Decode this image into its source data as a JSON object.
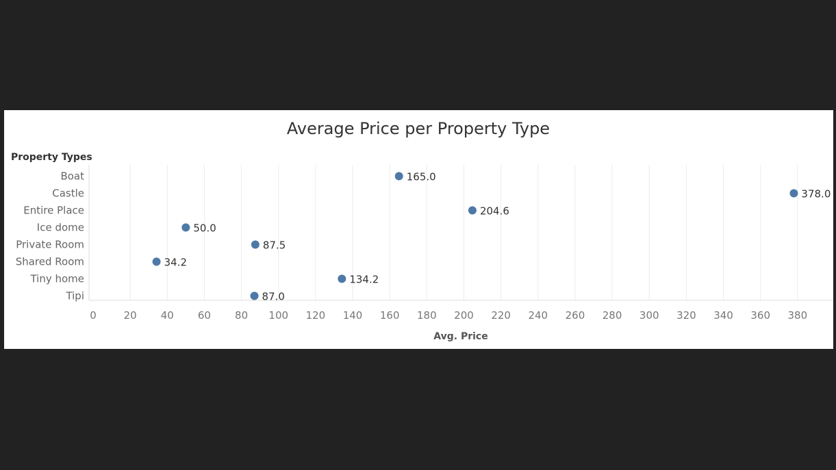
{
  "chart_data": {
    "type": "scatter",
    "title": "Average Price per Property Type",
    "row_header": "Property Types",
    "xlabel": "Avg. Price",
    "ylabel": "",
    "xlim": [
      0,
      395
    ],
    "x_ticks": [
      0,
      20,
      40,
      60,
      80,
      100,
      120,
      140,
      160,
      180,
      200,
      220,
      240,
      260,
      280,
      300,
      320,
      340,
      360,
      380
    ],
    "grid": true,
    "categories": [
      "Boat",
      "Castle",
      "Entire Place",
      "Ice dome",
      "Private Room",
      "Shared Room",
      "Tiny home",
      "Tipi"
    ],
    "values": [
      165.0,
      378.0,
      204.6,
      50.0,
      87.5,
      34.2,
      134.2,
      87.0
    ],
    "value_labels": [
      "165.0",
      "378.0",
      "204.6",
      "50.0",
      "87.5",
      "34.2",
      "134.2",
      "87.0"
    ],
    "marker_color": "#4e79a7"
  },
  "colors": {
    "background": "#222222",
    "panel": "#ffffff",
    "marker": "#4e79a7"
  }
}
